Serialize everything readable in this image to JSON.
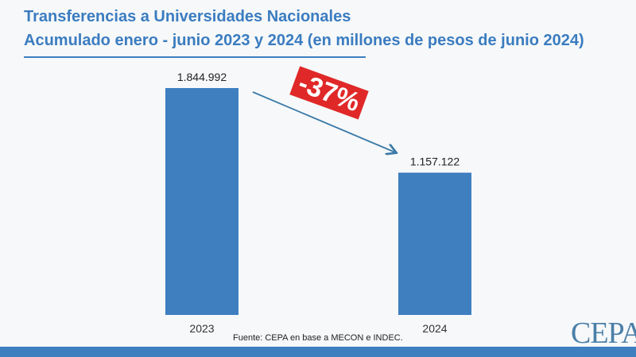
{
  "title_line1": "Transferencias a Universidades Nacionales",
  "title_line2": "Acumulado enero - junio 2023 y 2024 (en millones de pesos de junio 2024)",
  "source": "Fuente: CEPA en base a MECON e INDEC.",
  "logo": "CEPA",
  "change_label": "-37%",
  "colors": {
    "bar": "#3f7fc0",
    "title": "#3b7cc0",
    "badge": "#e02828",
    "arrow": "#3a7aa8"
  },
  "chart_data": {
    "type": "bar",
    "title": "Transferencias a Universidades Nacionales Acumulado enero - junio 2023 y 2024 (en millones de pesos de junio 2024)",
    "categories": [
      "2023",
      "2024"
    ],
    "values": [
      1844992,
      1157122
    ],
    "data_labels": [
      "1.844.992",
      "1.157.122"
    ],
    "annotation": "-37%",
    "ylim": [
      0,
      1844992
    ],
    "grid": false
  }
}
